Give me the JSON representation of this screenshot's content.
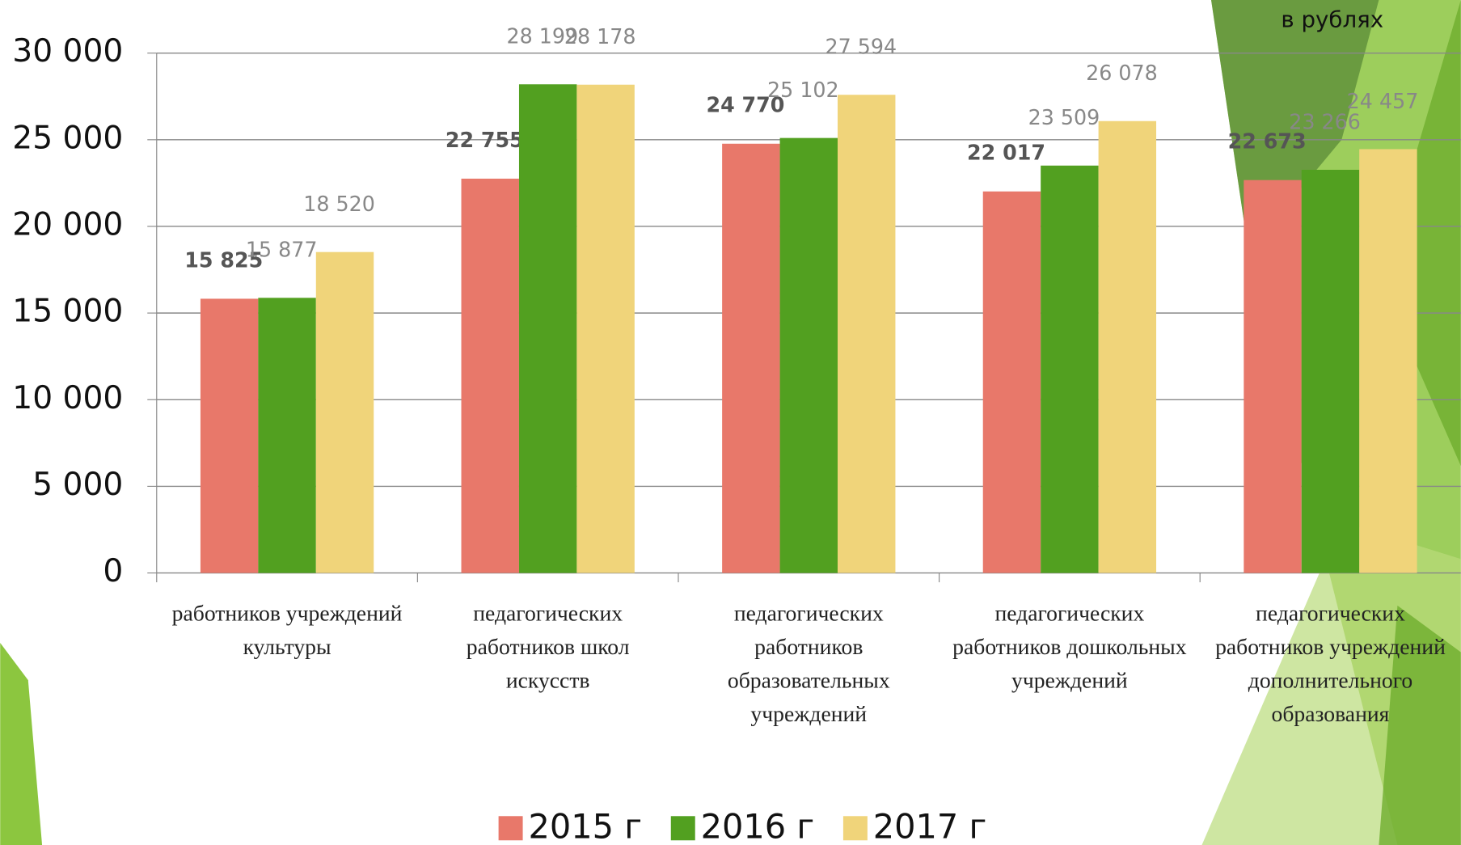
{
  "chart_data": {
    "type": "bar",
    "unit": "в рублях",
    "categories": [
      "работников учреждений культуры",
      "педагогических работников школ искусств",
      "педагогических работников образовательных учреждений",
      "педагогических работников дошкольных учреждений",
      "педагогических работников учреждений дополнительного образования"
    ],
    "series": [
      {
        "name": "2015 г",
        "color": "#e8786a",
        "values": [
          15825,
          22755,
          24770,
          22017,
          22673
        ],
        "value_labels": [
          "15 825",
          "22 755",
          "24 770",
          "22 017",
          "22 673"
        ]
      },
      {
        "name": "2016 г",
        "color": "#52a020",
        "values": [
          15877,
          28199,
          25102,
          23509,
          23266
        ],
        "value_labels": [
          "15 877",
          "28 199",
          "25 102",
          "23 509",
          "23 266"
        ]
      },
      {
        "name": "2017 г",
        "color": "#f0d47a",
        "values": [
          18520,
          28178,
          27594,
          26078,
          24457
        ],
        "value_labels": [
          "18 520",
          "28 178",
          "27 594",
          "26 078",
          "24 457"
        ]
      }
    ],
    "ylim": [
      0,
      30000
    ],
    "yticks": [
      0,
      {
        "value": 5000,
        "label": "5 000"
      },
      {
        "value": 10000,
        "label": "10 000"
      },
      {
        "value": 15000,
        "label": "15 000"
      },
      {
        "value": 20000,
        "label": "20 000"
      },
      {
        "value": 25000,
        "label": "25 000"
      },
      {
        "value": 30000,
        "label": "30 000"
      }
    ],
    "grid": true,
    "legend": "bottom"
  }
}
